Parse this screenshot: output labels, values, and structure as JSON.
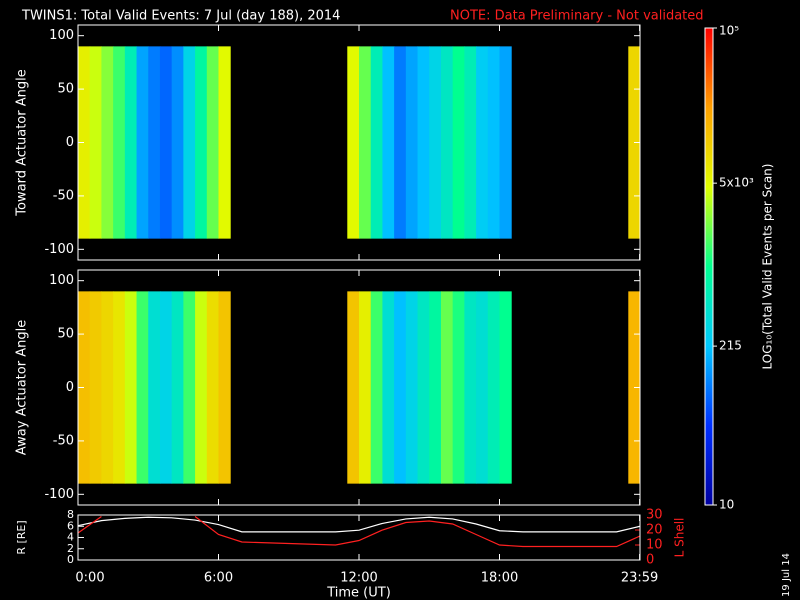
{
  "title": "TWINS1: Total Valid Events:  7 Jul (day 188), 2014",
  "note": "NOTE: Data Preliminary - Not validated",
  "date_stamp": "19 Jul 14",
  "colorbar": {
    "label": "LOG₁₀(Total Valid Events per Scan)",
    "log": true,
    "lim": [
      10,
      100000
    ],
    "ticks": [
      10,
      215,
      {
        "value": 5000,
        "label": "5x10³"
      },
      {
        "value": 100000,
        "label": "10⁵"
      }
    ],
    "colormap": [
      "#0000a0",
      "#0030ff",
      "#00c8ff",
      "#00ff90",
      "#e0ff00",
      "#ffa000",
      "#ff0000"
    ]
  },
  "chart_data": [
    {
      "type": "heatmap",
      "ylabel": "Toward Actuator Angle",
      "xlim": [
        0,
        24
      ],
      "ylim": [
        -110,
        110
      ],
      "yticks": [
        -100,
        -50,
        0,
        50,
        100
      ],
      "y_edges": [
        -90,
        90
      ],
      "x": [
        0,
        0.5,
        1,
        1.5,
        2,
        2.5,
        3,
        3.5,
        4,
        4.5,
        5,
        5.5,
        6,
        6.5,
        7,
        7.5,
        8,
        8.5,
        9,
        9.5,
        10,
        10.5,
        11,
        11.5,
        12,
        12.5,
        13,
        13.5,
        14,
        14.5,
        15,
        15.5,
        16,
        16.5,
        17,
        17.5,
        18,
        18.5,
        19,
        19.5,
        20,
        20.5,
        21,
        21.5,
        22,
        22.5,
        23,
        23.5
      ],
      "values": [
        6000,
        4000,
        2500,
        1500,
        600,
        150,
        100,
        80,
        120,
        300,
        800,
        2000,
        5000,
        null,
        null,
        null,
        null,
        null,
        null,
        null,
        null,
        null,
        null,
        5000,
        2000,
        600,
        200,
        100,
        150,
        200,
        300,
        500,
        1000,
        600,
        250,
        200,
        150,
        null,
        null,
        null,
        null,
        null,
        null,
        null,
        null,
        null,
        null,
        9000
      ]
    },
    {
      "type": "heatmap",
      "ylabel": "Away Actuator Angle",
      "xlim": [
        0,
        24
      ],
      "ylim": [
        -110,
        110
      ],
      "yticks": [
        -100,
        -50,
        0,
        50,
        100
      ],
      "y_edges": [
        -90,
        90
      ],
      "x": [
        0,
        0.5,
        1,
        1.5,
        2,
        2.5,
        3,
        3.5,
        4,
        4.5,
        5,
        5.5,
        6,
        6.5,
        7,
        7.5,
        8,
        8.5,
        9,
        9.5,
        10,
        10.5,
        11,
        11.5,
        12,
        12.5,
        13,
        13.5,
        14,
        14.5,
        15,
        15.5,
        16,
        16.5,
        17,
        17.5,
        18,
        18.5,
        19,
        19.5,
        20,
        20.5,
        21,
        21.5,
        22,
        22.5,
        23,
        23.5
      ],
      "values": [
        13000,
        11000,
        9000,
        7000,
        4000,
        1500,
        400,
        300,
        500,
        1500,
        4000,
        8000,
        12000,
        null,
        null,
        null,
        null,
        null,
        null,
        null,
        null,
        null,
        null,
        12000,
        6000,
        1500,
        400,
        200,
        300,
        500,
        800,
        2000,
        1200,
        500,
        400,
        600,
        1000,
        null,
        null,
        null,
        null,
        null,
        null,
        null,
        null,
        null,
        null,
        15000
      ]
    },
    {
      "type": "line",
      "ylabel": "R [RE]",
      "y2label": "L Shell",
      "xlabel": "Time (UT)",
      "xlim": [
        0,
        24
      ],
      "xticks": [
        {
          "value": 0,
          "label": "0:00"
        },
        {
          "value": 6,
          "label": "6:00"
        },
        {
          "value": 12,
          "label": "12:00"
        },
        {
          "value": 18,
          "label": "18:00"
        },
        {
          "value": 23.983,
          "label": "23:59"
        }
      ],
      "ylim": [
        0,
        8
      ],
      "yticks": [
        0,
        2,
        4,
        6,
        8
      ],
      "y2lim": [
        0,
        30
      ],
      "y2ticks": [
        0,
        10,
        20,
        30
      ],
      "x": [
        0,
        1,
        2,
        3,
        4,
        5,
        6,
        7,
        8,
        9,
        10,
        11,
        12,
        13,
        14,
        15,
        16,
        17,
        18,
        19,
        20,
        21,
        22,
        23,
        24
      ],
      "series": [
        {
          "name": "R",
          "color": "#ffffff",
          "values": [
            6.1,
            7.0,
            7.4,
            7.6,
            7.5,
            7.1,
            6.3,
            5.0,
            5.0,
            5.0,
            5.0,
            5.0,
            5.3,
            6.5,
            7.3,
            7.6,
            7.3,
            6.4,
            5.2,
            5.0,
            5.0,
            5.0,
            5.0,
            5.0,
            6.0
          ]
        },
        {
          "name": "L Shell",
          "color": "#ff2020",
          "axis": "y2",
          "values": [
            18,
            29,
            null,
            null,
            null,
            29,
            17,
            12,
            11.5,
            11,
            10.5,
            10,
            13,
            20,
            25,
            26,
            24,
            17,
            10,
            9,
            9,
            9,
            9,
            9,
            16
          ]
        }
      ]
    }
  ]
}
